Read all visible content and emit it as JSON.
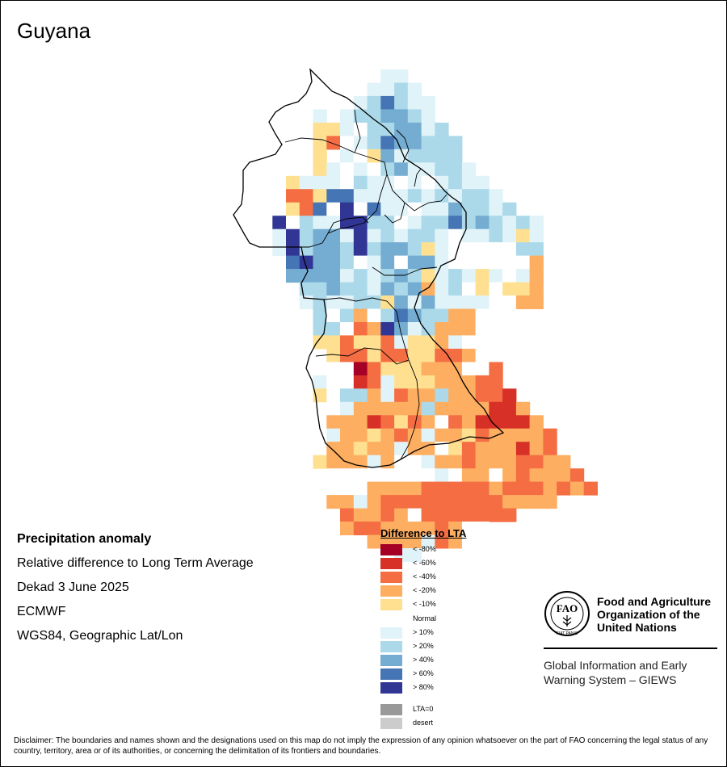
{
  "map": {
    "title": "Guyana",
    "info_lines": [
      "Precipitation anomaly",
      "Relative difference to Long Term Average",
      "Dekad 3 June 2025",
      "ECMWF",
      "WGS84, Geographic Lat/Lon"
    ]
  },
  "legend": {
    "title": "Difference to LTA",
    "items": [
      {
        "label": "< -80%",
        "color": "#a50026"
      },
      {
        "label": "< -60%",
        "color": "#d73027"
      },
      {
        "label": "< -40%",
        "color": "#f46d43"
      },
      {
        "label": "< -20%",
        "color": "#fdae61"
      },
      {
        "label": "< -10%",
        "color": "#fee090"
      },
      {
        "label": "Normal",
        "color": "#ffffff"
      },
      {
        "label": "> 10%",
        "color": "#e0f3f8"
      },
      {
        "label": "> 20%",
        "color": "#abd9e9"
      },
      {
        "label": "> 40%",
        "color": "#74add1"
      },
      {
        "label": "> 60%",
        "color": "#4575b4"
      },
      {
        "label": "> 80%",
        "color": "#313695"
      }
    ],
    "extra": [
      {
        "label": "LTA=0",
        "color": "#999999"
      },
      {
        "label": "desert",
        "color": "#cccccc"
      }
    ]
  },
  "fao": {
    "org_name": "Food and Agriculture Organization of the United Nations",
    "logo_text": "FAO",
    "logo_motto": "FIAT PANIS",
    "system_name": "Global Information and Early Warning System – GIEWS"
  },
  "disclaimer": "Disclaimer: The boundaries and names shown and the designations used on this map do not imply the expression of any opinion whatsoever on the part of FAO concerning the legal status of any country, territory, area or of its authorities, or concerning the delimitation of its frontiers and boundaries."
}
